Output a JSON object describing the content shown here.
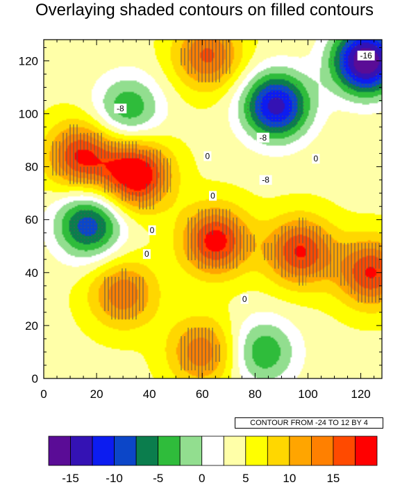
{
  "title": "Overlaying shaded contours on filled contours",
  "info_label": "CONTOUR FROM -24 TO 12 BY 4",
  "chart_data": {
    "type": "contour",
    "xlim": [
      0,
      128
    ],
    "ylim": [
      0,
      128
    ],
    "x_ticks": [
      0,
      20,
      40,
      60,
      80,
      100,
      120
    ],
    "y_ticks": [
      0,
      20,
      40,
      60,
      80,
      100,
      120
    ],
    "x_tick_labels": [
      "0",
      "20",
      "40",
      "60",
      "80",
      "100",
      "120"
    ],
    "y_tick_labels": [
      "0",
      "20",
      "40",
      "60",
      "80",
      "100",
      "120"
    ],
    "contour_levels": [
      -24,
      -20,
      -16,
      -12,
      -8,
      -4,
      0,
      4,
      8,
      12
    ],
    "colorbar": {
      "colors": [
        "#5a0c96",
        "#3412b4",
        "#0c1cf0",
        "#0c46c8",
        "#0b7d4d",
        "#2fbc3b",
        "#92de8f",
        "#ffffff",
        "#ffffa8",
        "#ffff00",
        "#ffd700",
        "#ffa500",
        "#ff8000",
        "#ff4a00",
        "#ff0000"
      ],
      "tick_values": [
        -15,
        -10,
        -5,
        0,
        5,
        10,
        15
      ],
      "tick_labels": [
        "-15",
        "-10",
        "-5",
        "0",
        "5",
        "10",
        "15"
      ]
    },
    "features": [
      {
        "x": 17,
        "y": 58,
        "value": -12
      },
      {
        "x": 32,
        "y": 102,
        "value": -8
      },
      {
        "x": 83,
        "y": 10,
        "value": -8
      },
      {
        "x": 88,
        "y": 103,
        "value": -16
      },
      {
        "x": 122,
        "y": 120,
        "value": -20
      },
      {
        "x": 35,
        "y": 77,
        "value": 15
      },
      {
        "x": 14,
        "y": 84,
        "value": 12
      },
      {
        "x": 65,
        "y": 52,
        "value": 13
      },
      {
        "x": 97,
        "y": 48,
        "value": 12
      },
      {
        "x": 124,
        "y": 40,
        "value": 12
      },
      {
        "x": 62,
        "y": 122,
        "value": 10
      },
      {
        "x": 30,
        "y": 32,
        "value": 9
      },
      {
        "x": 60,
        "y": 10,
        "value": 9
      }
    ],
    "line_labels": [
      {
        "x": 122,
        "y": 122,
        "text": "-16"
      },
      {
        "x": 29,
        "y": 102,
        "text": "-8"
      },
      {
        "x": 83,
        "y": 91,
        "text": "-8"
      },
      {
        "x": 84,
        "y": 75,
        "text": "-8"
      },
      {
        "x": 62,
        "y": 84,
        "text": "0"
      },
      {
        "x": 64,
        "y": 69,
        "text": "0"
      },
      {
        "x": 103,
        "y": 83,
        "text": "0"
      },
      {
        "x": 41,
        "y": 56,
        "text": "0"
      },
      {
        "x": 39,
        "y": 47,
        "text": "0"
      },
      {
        "x": 76,
        "y": 30,
        "text": "0"
      }
    ]
  }
}
